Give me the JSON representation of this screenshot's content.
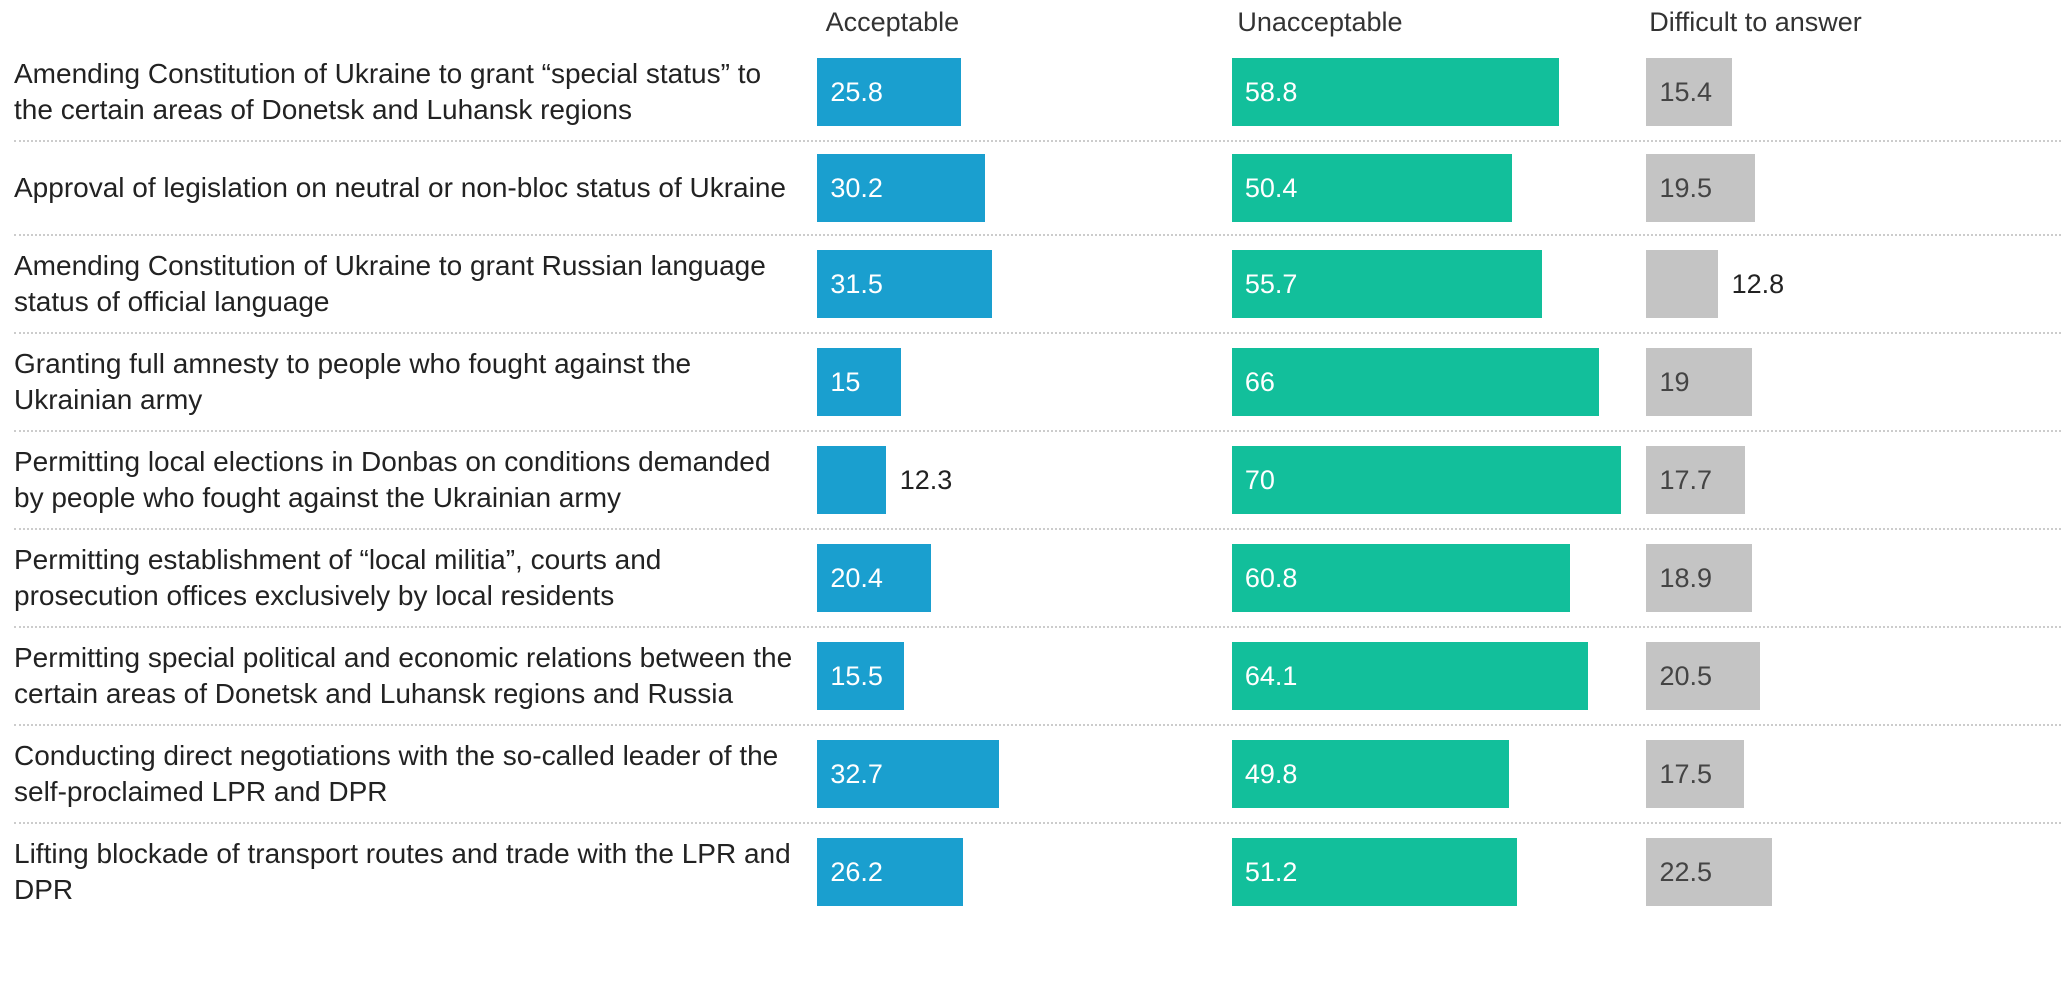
{
  "chart_data": {
    "type": "bar",
    "categories": [
      "Amending Constitution of Ukraine to grant “special status” to the certain areas of Donetsk and Luhansk regions",
      "Approval of legislation on neutral or non-bloc status of Ukraine",
      "Amending Constitution of Ukraine to grant Russian language status of official language",
      "Granting full amnesty to people who fought against the Ukrainian army",
      "Permitting local elections in Donbas on conditions demanded by people who fought against the Ukrainian army",
      "Permitting establishment of “local militia”, courts and prosecution offices exclusively by local residents",
      "Permitting special political and economic relations between the certain areas of Donetsk and Luhansk regions and Russia",
      "Conducting direct negotiations with the so-called leader of the self-proclaimed LPR and DPR",
      "Lifting blockade of transport routes and trade with the LPR and DPR"
    ],
    "series": [
      {
        "name": "Acceptable",
        "color": "#1a9fcf",
        "values": [
          25.8,
          30.2,
          31.5,
          15,
          12.3,
          20.4,
          15.5,
          32.7,
          26.2
        ]
      },
      {
        "name": "Unacceptable",
        "color": "#12bf9b",
        "values": [
          58.8,
          50.4,
          55.7,
          66,
          70,
          60.8,
          64.1,
          49.8,
          51.2
        ]
      },
      {
        "name": "Difficult to answer",
        "color": "#c4c4c4",
        "values": [
          15.4,
          19.5,
          12.8,
          19,
          17.7,
          18.9,
          20.5,
          17.5,
          22.5
        ]
      }
    ],
    "xlim": [
      0,
      75
    ]
  }
}
